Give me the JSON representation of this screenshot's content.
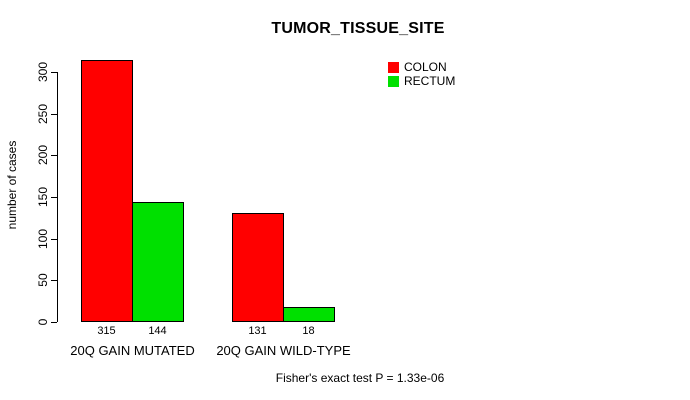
{
  "chart_data": {
    "type": "bar",
    "title": "TUMOR_TISSUE_SITE",
    "xlabel": "",
    "ylabel": "number of cases",
    "categories": [
      "20Q GAIN MUTATED",
      "20Q GAIN WILD-TYPE"
    ],
    "series": [
      {
        "name": "COLON",
        "color": "#FF0000",
        "values": [
          315,
          131
        ]
      },
      {
        "name": "RECTUM",
        "color": "#00E000",
        "values": [
          144,
          18
        ]
      }
    ],
    "ylim": [
      0,
      300
    ],
    "yticks": [
      0,
      50,
      100,
      150,
      200,
      250,
      300
    ],
    "bar_value_labels": true,
    "grid": false,
    "legend_position": "top-right",
    "annotation": "Fisher's exact test P = 1.33e-06",
    "axis_color": "#000000",
    "background_color": "#FFFFFF"
  }
}
